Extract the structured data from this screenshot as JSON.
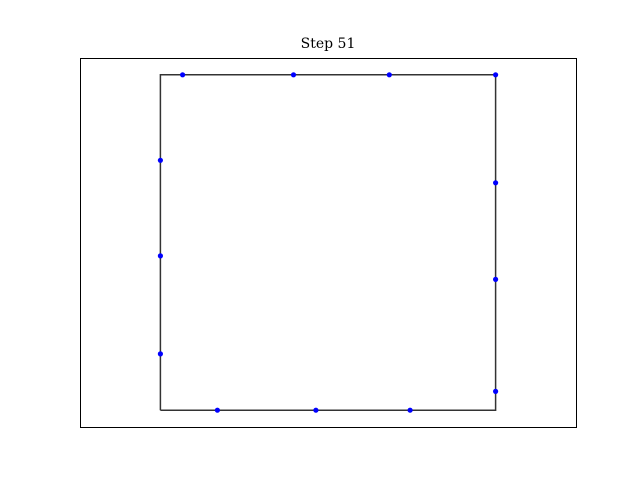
{
  "chart_data": {
    "type": "scatter",
    "title": "Step 51",
    "xlabel": "",
    "ylabel": "",
    "xlim": [
      -0.24,
      1.24
    ],
    "ylim": [
      -0.05,
      1.05
    ],
    "axes_visible": false,
    "grid": false,
    "outline": {
      "name": "",
      "color": "#333333",
      "x": [
        0,
        1,
        1,
        0,
        0
      ],
      "y": [
        0,
        0,
        1,
        1,
        0
      ]
    },
    "series": [
      {
        "name": "",
        "color": "#0000ff",
        "points": [
          [
            0.066,
            1.0
          ],
          [
            0.397,
            1.0
          ],
          [
            0.683,
            1.0
          ],
          [
            1.0,
            1.0
          ],
          [
            1.0,
            0.678
          ],
          [
            1.0,
            0.39
          ],
          [
            1.0,
            0.056
          ],
          [
            0.17,
            0.0
          ],
          [
            0.464,
            0.0
          ],
          [
            0.745,
            0.0
          ],
          [
            0.0,
            0.168
          ],
          [
            0.0,
            0.46
          ],
          [
            0.0,
            0.745
          ]
        ]
      }
    ]
  }
}
